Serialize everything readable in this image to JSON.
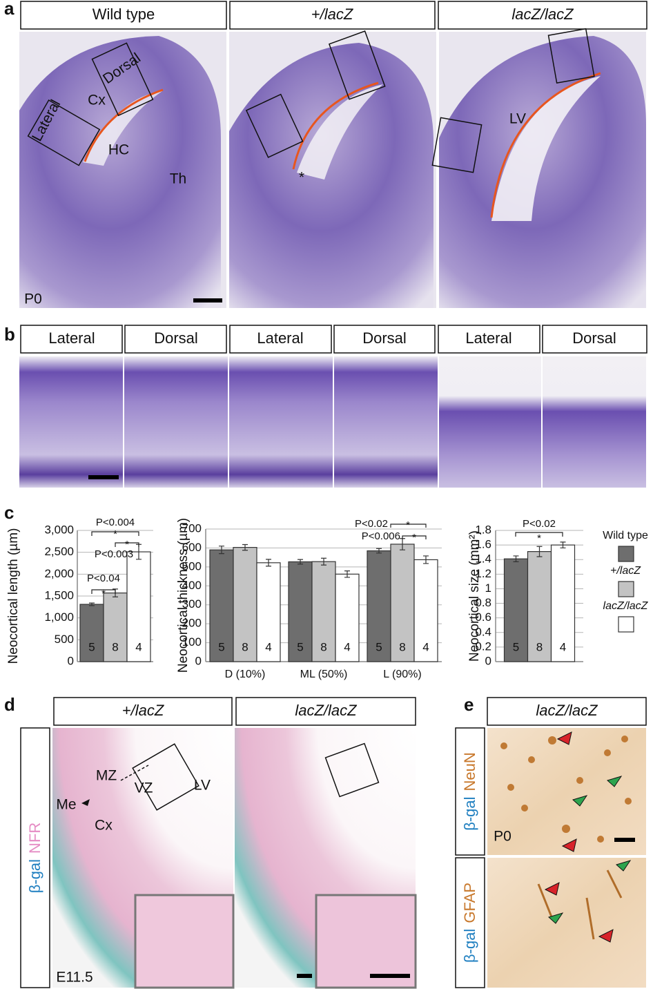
{
  "panel_a": {
    "label": "a",
    "headers": [
      "Wild type",
      "+/lacZ",
      "lacZ/lacZ"
    ],
    "image_labels": [
      [
        "Dorsal",
        "Lateral",
        "Cx",
        "HC",
        "Th",
        "P0"
      ],
      [
        "*"
      ],
      [
        "LV"
      ]
    ]
  },
  "panel_b": {
    "label": "b",
    "headers": [
      "Lateral",
      "Dorsal",
      "Lateral",
      "Dorsal",
      "Lateral",
      "Dorsal"
    ]
  },
  "panel_c": {
    "label": "c"
  },
  "chart_data": [
    {
      "type": "bar",
      "y_label": "Neocortical length (µm)",
      "ylim": [
        0,
        3000
      ],
      "yticks": [
        0,
        500,
        {
          "value": 1000,
          "label": "1,000"
        },
        {
          "value": 1500,
          "label": "1,500"
        },
        {
          "value": 2000,
          "label": "2,000"
        },
        {
          "value": 2500,
          "label": "2,500"
        },
        {
          "value": 3000,
          "label": "3,000"
        }
      ],
      "grid": true,
      "series": [
        {
          "color": "#6e6e6e",
          "values": [
            1310
          ],
          "errors": [
            30
          ],
          "n": [
            5
          ]
        },
        {
          "color": "#c3c3c3",
          "values": [
            1570
          ],
          "errors": [
            90
          ],
          "n": [
            8
          ]
        },
        {
          "color": "#ffffff",
          "values": [
            2510
          ],
          "errors": [
            170
          ],
          "n": [
            4
          ]
        }
      ],
      "annotations": [
        "P<0.004",
        "*",
        "*",
        "P<0.003",
        "P<0.04",
        "*"
      ]
    },
    {
      "type": "bar",
      "y_label": "Neocortical thickness (µm)",
      "categories": [
        "D (10%)",
        "ML (50%)",
        "L (90%)"
      ],
      "ylim": [
        0,
        700
      ],
      "yticks": [
        0,
        100,
        200,
        300,
        400,
        500,
        600,
        700
      ],
      "grid": true,
      "series": [
        {
          "color": "#6e6e6e",
          "values": [
            590,
            527,
            585
          ],
          "errors": [
            20,
            12,
            12
          ],
          "n": [
            5,
            5,
            5
          ]
        },
        {
          "color": "#c3c3c3",
          "values": [
            603,
            528,
            620
          ],
          "errors": [
            15,
            18,
            30
          ],
          "n": [
            8,
            8,
            8
          ]
        },
        {
          "color": "#ffffff",
          "values": [
            522,
            462,
            538
          ],
          "errors": [
            18,
            17,
            20
          ],
          "n": [
            4,
            4,
            4
          ]
        }
      ],
      "annotations": [
        "P<0.02",
        "*",
        "P<0.006",
        "*"
      ]
    },
    {
      "type": "bar",
      "y_label": "Neocortical size (mm²)",
      "ylim": [
        0,
        1.8
      ],
      "yticks": [
        0,
        0.2,
        0.4,
        0.6,
        0.8,
        1,
        1.2,
        1.4,
        1.6,
        1.8
      ],
      "grid": true,
      "series": [
        {
          "name": "Wild type",
          "color": "#6e6e6e",
          "values": [
            1.41
          ],
          "errors": [
            0.04
          ],
          "n": [
            5
          ]
        },
        {
          "name": "+/lacZ",
          "color": "#c3c3c3",
          "values": [
            1.51
          ],
          "errors": [
            0.07
          ],
          "n": [
            8
          ]
        },
        {
          "name": "lacZ/lacZ",
          "color": "#ffffff",
          "values": [
            1.6
          ],
          "errors": [
            0.04
          ],
          "n": [
            4
          ]
        }
      ],
      "annotations": [
        "P<0.02",
        "*"
      ]
    }
  ],
  "panel_d": {
    "label": "d",
    "headers": [
      "+/lacZ",
      "lacZ/lacZ"
    ],
    "side_label": [
      "β-gal",
      "NFR"
    ],
    "image_labels": [
      "MZ",
      "VZ",
      "LV",
      "Me",
      "Cx",
      "E11.5"
    ]
  },
  "panel_e": {
    "label": "e",
    "header": "lacZ/lacZ",
    "side_labels": [
      [
        "β-gal",
        "NeuN"
      ],
      [
        "β-gal",
        "GFAP"
      ]
    ],
    "image_labels": [
      "P0"
    ]
  }
}
